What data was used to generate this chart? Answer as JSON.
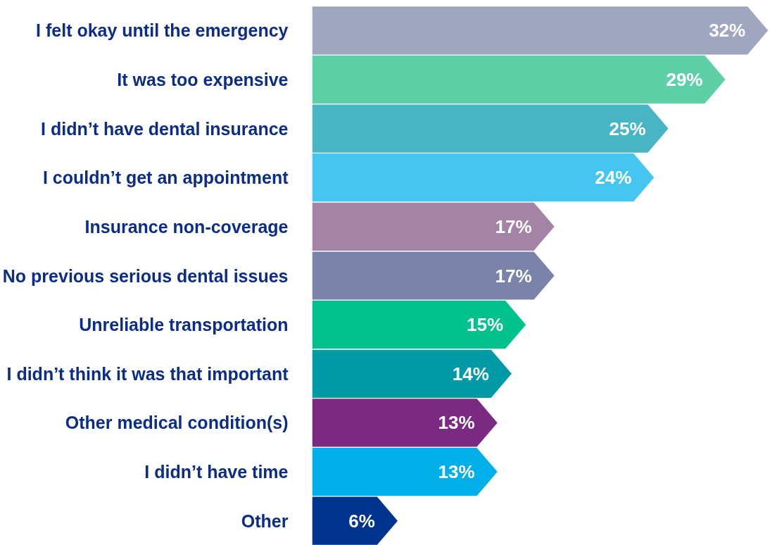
{
  "chart_data": {
    "type": "bar",
    "orientation": "horizontal",
    "categories": [
      "I felt okay until the emergency",
      "It was too expensive",
      "I didn’t have dental insurance",
      "I couldn’t get an appointment",
      "Insurance non-coverage",
      "No previous serious dental issues",
      "Unreliable transportation",
      "I didn’t think it was that important",
      "Other medical condition(s)",
      "I didn’t have time",
      "Other"
    ],
    "values": [
      32,
      29,
      25,
      24,
      17,
      17,
      15,
      14,
      13,
      13,
      6
    ],
    "colors": [
      "#a0a5c0",
      "#5dd0a8",
      "#48b5c4",
      "#45c6f2",
      "#a384a6",
      "#7a83aa",
      "#00c08b",
      "#009aa6",
      "#7b2a82",
      "#00aee9",
      "#00338d"
    ],
    "value_labels": [
      "32%",
      "29%",
      "25%",
      "24%",
      "17%",
      "17%",
      "15%",
      "14%",
      "13%",
      "13%",
      "6%"
    ]
  }
}
